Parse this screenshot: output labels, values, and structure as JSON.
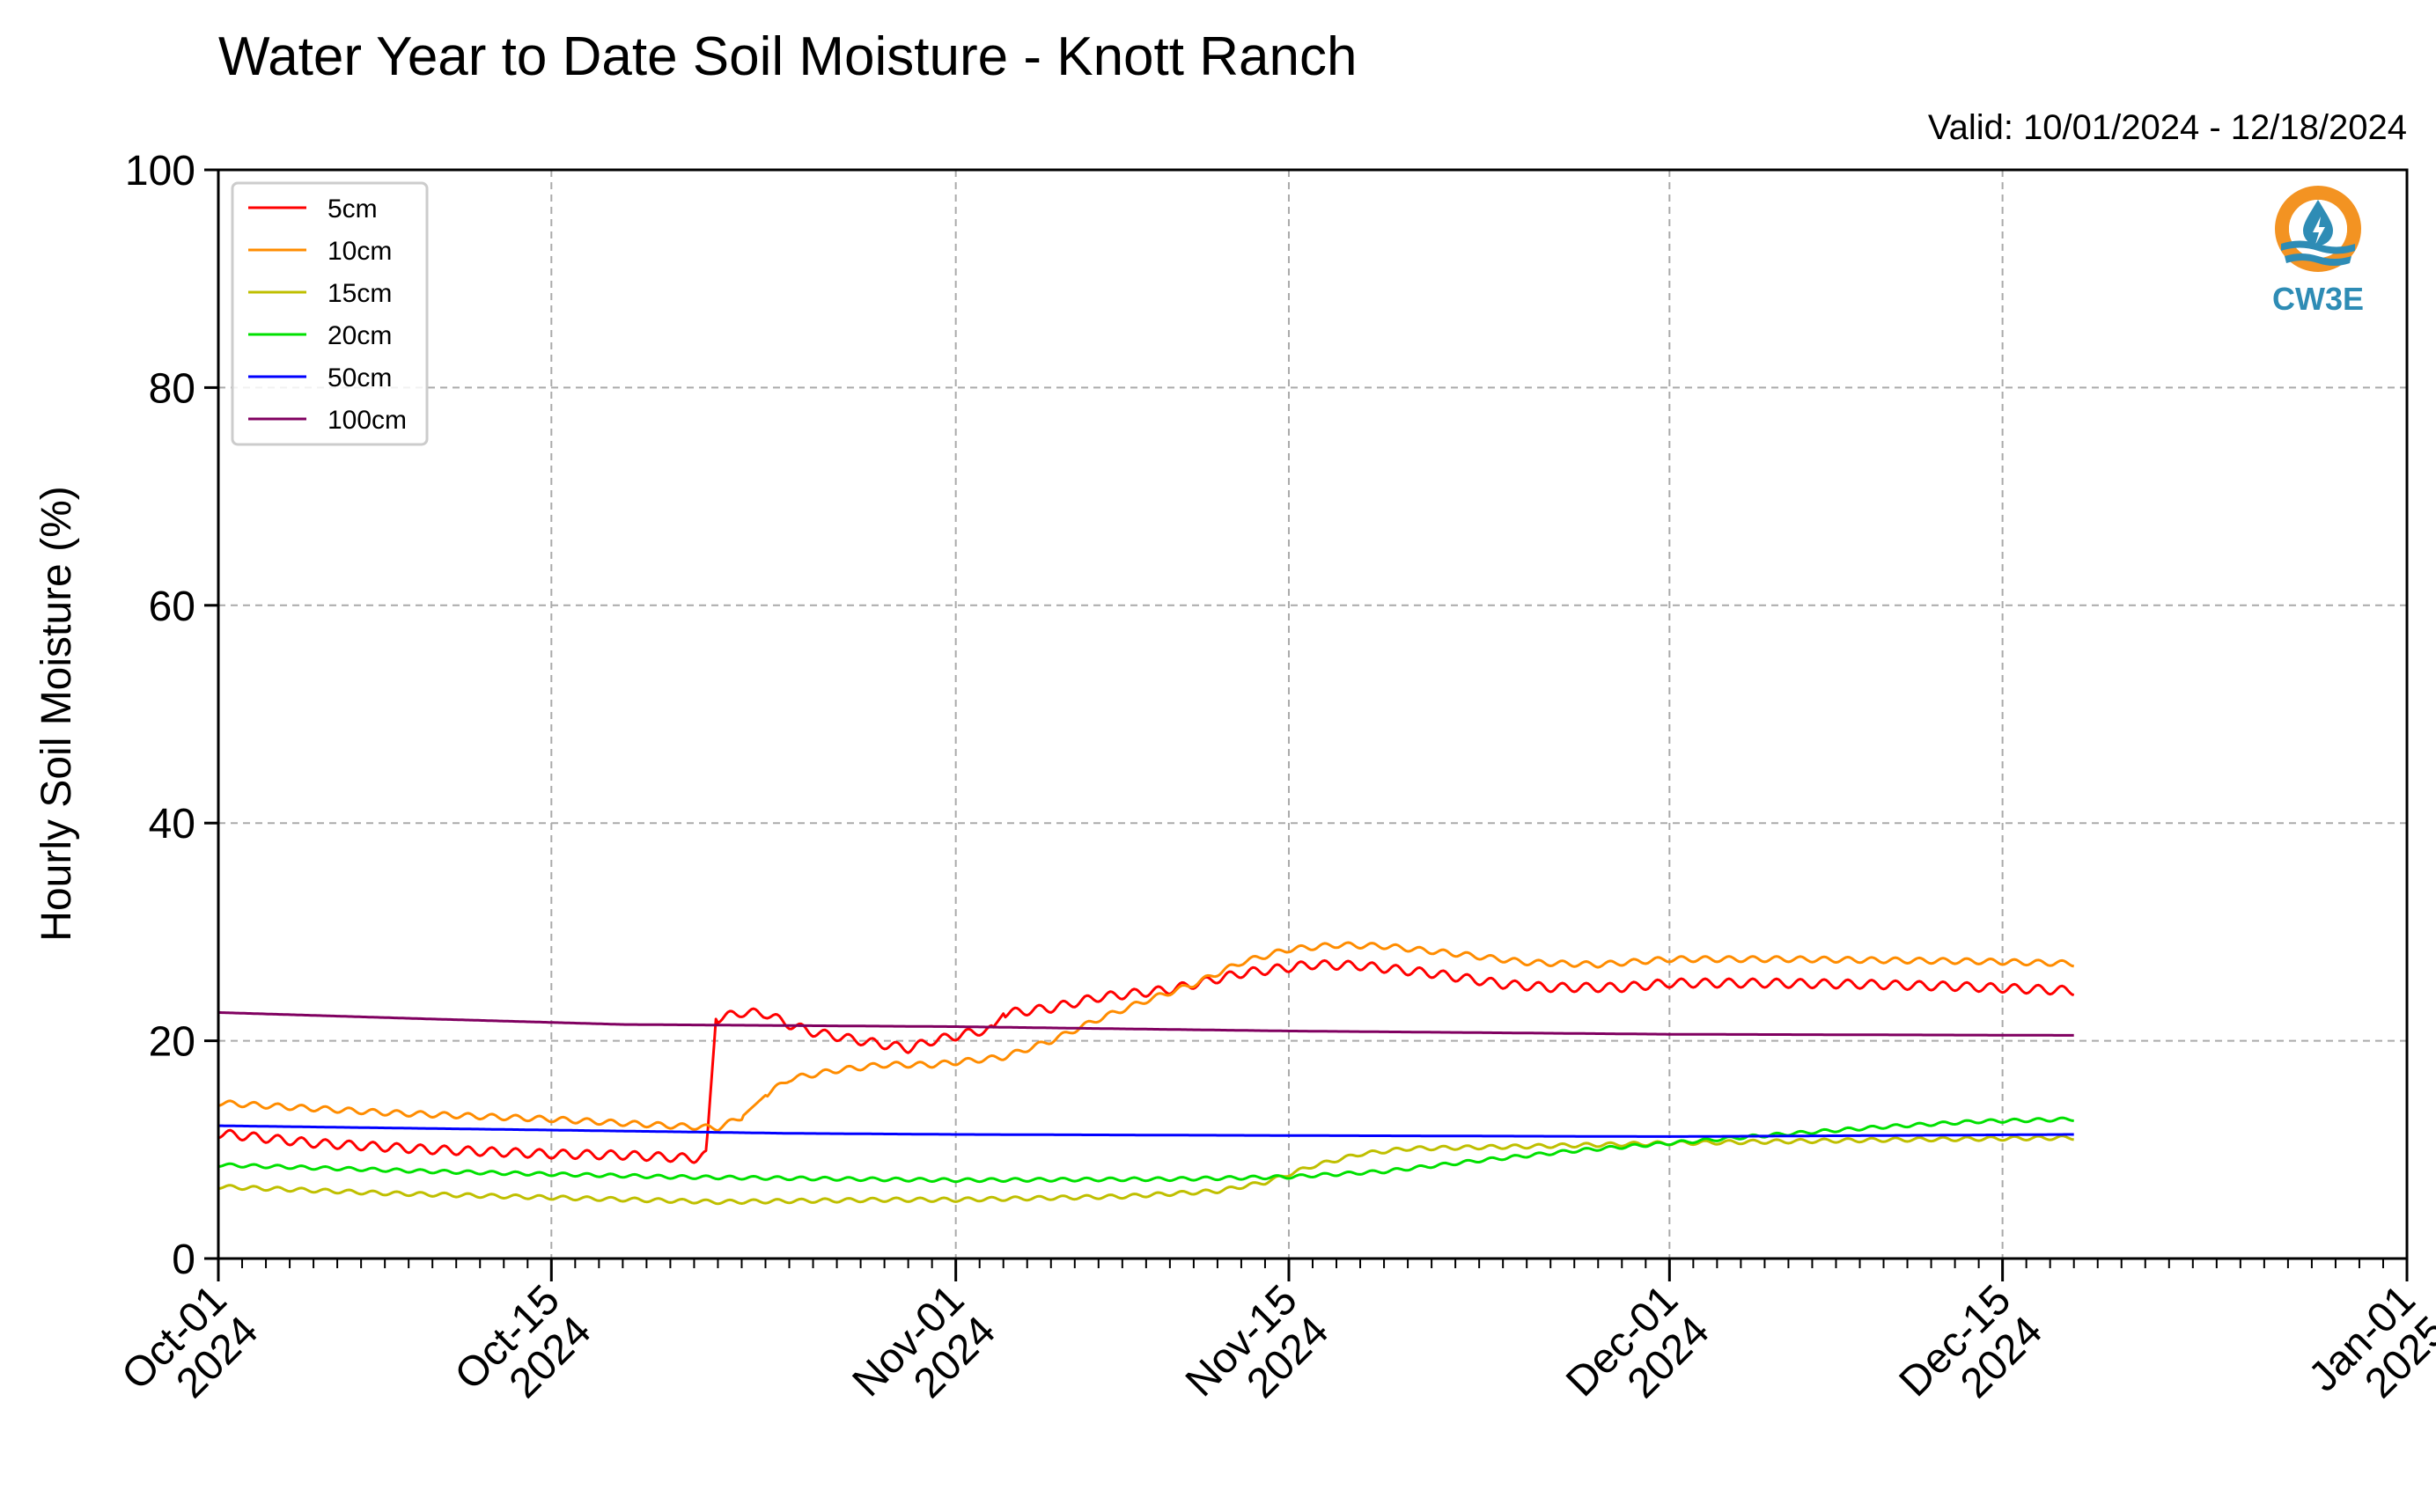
{
  "chart_data": {
    "type": "line",
    "title": "Water Year to Date Soil Moisture - Knott Ranch",
    "subtitle": "Valid: 10/01/2024 - 12/18/2024",
    "ylabel": "Hourly Soil Moisture (%)",
    "xlabel": "",
    "xlim": [
      "2024-10-01",
      "2025-01-01"
    ],
    "ylim": [
      0,
      100
    ],
    "yticks": [
      0,
      20,
      40,
      60,
      80,
      100
    ],
    "xticks": [
      {
        "date": "2024-10-01",
        "line1": "Oct-01",
        "line2": "2024"
      },
      {
        "date": "2024-10-15",
        "line1": "Oct-15",
        "line2": "2024"
      },
      {
        "date": "2024-11-01",
        "line1": "Nov-01",
        "line2": "2024"
      },
      {
        "date": "2024-11-15",
        "line1": "Nov-15",
        "line2": "2024"
      },
      {
        "date": "2024-12-01",
        "line1": "Dec-01",
        "line2": "2024"
      },
      {
        "date": "2024-12-15",
        "line1": "Dec-15",
        "line2": "2024"
      },
      {
        "date": "2025-01-01",
        "line1": "Jan-01",
        "line2": "2025"
      }
    ],
    "grid": true,
    "legend_position": "top-left",
    "logo": {
      "label": "CW3E",
      "ring_color": "#F39322",
      "water_color": "#2E8CB5",
      "label_color": "#2E8CB5"
    },
    "series": [
      {
        "name": "5cm",
        "color": "#FF0000",
        "oscillation": 0.8,
        "points": [
          [
            "2024-10-01",
            11.5
          ],
          [
            "2024-10-05",
            10.6
          ],
          [
            "2024-10-10",
            10.0
          ],
          [
            "2024-10-15",
            9.6
          ],
          [
            "2024-10-18",
            9.5
          ],
          [
            "2024-10-21",
            9.2
          ],
          [
            "2024-10-21T12",
            9.5
          ],
          [
            "2024-10-21T22",
            22.0
          ],
          [
            "2024-10-23",
            22.6
          ],
          [
            "2024-10-24",
            22.5
          ],
          [
            "2024-10-25",
            21.5
          ],
          [
            "2024-10-26",
            20.8
          ],
          [
            "2024-10-28",
            20.0
          ],
          [
            "2024-10-30",
            19.3
          ],
          [
            "2024-10-31",
            20.0
          ],
          [
            "2024-11-02",
            20.9
          ],
          [
            "2024-11-02T12",
            21.0
          ],
          [
            "2024-11-03",
            22.5
          ],
          [
            "2024-11-05",
            23.0
          ],
          [
            "2024-11-07",
            24.0
          ],
          [
            "2024-11-10",
            24.7
          ],
          [
            "2024-11-13",
            26.2
          ],
          [
            "2024-11-16",
            27.0
          ],
          [
            "2024-11-18",
            26.9
          ],
          [
            "2024-11-21",
            26.2
          ],
          [
            "2024-11-24",
            25.2
          ],
          [
            "2024-11-26",
            24.9
          ],
          [
            "2024-11-29",
            24.9
          ],
          [
            "2024-12-01",
            25.3
          ],
          [
            "2024-12-05",
            25.3
          ],
          [
            "2024-12-09",
            25.2
          ],
          [
            "2024-12-13",
            25.0
          ],
          [
            "2024-12-18",
            24.6
          ]
        ]
      },
      {
        "name": "10cm",
        "color": "#FF8C00",
        "oscillation": 0.5,
        "points": [
          [
            "2024-10-01",
            14.3
          ],
          [
            "2024-10-08",
            13.4
          ],
          [
            "2024-10-15",
            12.8
          ],
          [
            "2024-10-20",
            12.2
          ],
          [
            "2024-10-22",
            12.0
          ],
          [
            "2024-10-23",
            13.0
          ],
          [
            "2024-10-24",
            15.0
          ],
          [
            "2024-10-25",
            16.5
          ],
          [
            "2024-10-27",
            17.3
          ],
          [
            "2024-10-29",
            17.8
          ],
          [
            "2024-10-31",
            17.8
          ],
          [
            "2024-11-03",
            18.5
          ],
          [
            "2024-11-05",
            20.0
          ],
          [
            "2024-11-07",
            22.0
          ],
          [
            "2024-11-09",
            23.7
          ],
          [
            "2024-11-11",
            25.2
          ],
          [
            "2024-11-13",
            27.2
          ],
          [
            "2024-11-15",
            28.4
          ],
          [
            "2024-11-17",
            28.8
          ],
          [
            "2024-11-19",
            28.7
          ],
          [
            "2024-11-22",
            28.0
          ],
          [
            "2024-11-25",
            27.2
          ],
          [
            "2024-11-28",
            27.0
          ],
          [
            "2024-12-01",
            27.5
          ],
          [
            "2024-12-06",
            27.5
          ],
          [
            "2024-12-10",
            27.4
          ],
          [
            "2024-12-14",
            27.3
          ],
          [
            "2024-12-18",
            27.1
          ]
        ]
      },
      {
        "name": "15cm",
        "color": "#BFBF00",
        "oscillation": 0.35,
        "points": [
          [
            "2024-10-01",
            6.6
          ],
          [
            "2024-10-08",
            6.0
          ],
          [
            "2024-10-15",
            5.6
          ],
          [
            "2024-10-22",
            5.2
          ],
          [
            "2024-10-29",
            5.4
          ],
          [
            "2024-11-01",
            5.4
          ],
          [
            "2024-11-08",
            5.7
          ],
          [
            "2024-11-12",
            6.2
          ],
          [
            "2024-11-14",
            7.0
          ],
          [
            "2024-11-16",
            8.5
          ],
          [
            "2024-11-18",
            9.6
          ],
          [
            "2024-11-20",
            10.1
          ],
          [
            "2024-11-25",
            10.3
          ],
          [
            "2024-12-01",
            10.6
          ],
          [
            "2024-12-10",
            10.9
          ],
          [
            "2024-12-18",
            11.1
          ]
        ]
      },
      {
        "name": "20cm",
        "color": "#00E000",
        "oscillation": 0.3,
        "points": [
          [
            "2024-10-01",
            8.6
          ],
          [
            "2024-10-10",
            8.0
          ],
          [
            "2024-10-20",
            7.5
          ],
          [
            "2024-11-01",
            7.2
          ],
          [
            "2024-11-10",
            7.3
          ],
          [
            "2024-11-15",
            7.5
          ],
          [
            "2024-11-19",
            8.0
          ],
          [
            "2024-11-23",
            9.0
          ],
          [
            "2024-11-27",
            9.9
          ],
          [
            "2024-12-01",
            10.6
          ],
          [
            "2024-12-05",
            11.3
          ],
          [
            "2024-12-10",
            12.1
          ],
          [
            "2024-12-14",
            12.6
          ],
          [
            "2024-12-18",
            12.8
          ]
        ]
      },
      {
        "name": "50cm",
        "color": "#0000FF",
        "oscillation": 0,
        "points": [
          [
            "2024-10-01",
            12.2
          ],
          [
            "2024-10-15",
            11.8
          ],
          [
            "2024-10-25",
            11.5
          ],
          [
            "2024-11-01",
            11.4
          ],
          [
            "2024-11-15",
            11.3
          ],
          [
            "2024-12-01",
            11.2
          ],
          [
            "2024-12-10",
            11.3
          ],
          [
            "2024-12-18",
            11.4
          ]
        ]
      },
      {
        "name": "100cm",
        "color": "#800060",
        "oscillation": 0,
        "points": [
          [
            "2024-10-01",
            22.6
          ],
          [
            "2024-10-10",
            22.0
          ],
          [
            "2024-10-18",
            21.5
          ],
          [
            "2024-11-01",
            21.3
          ],
          [
            "2024-11-15",
            20.9
          ],
          [
            "2024-12-01",
            20.6
          ],
          [
            "2024-12-18",
            20.5
          ]
        ]
      }
    ]
  }
}
